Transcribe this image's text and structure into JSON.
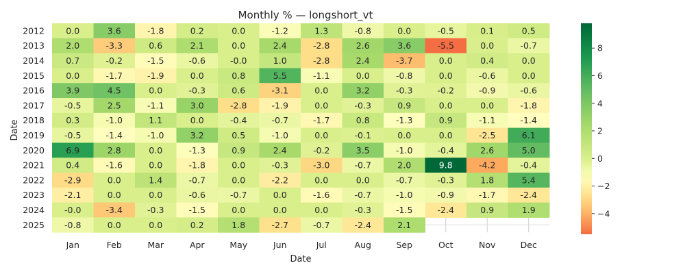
{
  "chart_data": {
    "type": "heatmap",
    "title": "Monthly % — longshort_vt",
    "xlabel": "Date",
    "ylabel": "Date",
    "x_categories": [
      "Jan",
      "Feb",
      "Mar",
      "Apr",
      "May",
      "Jun",
      "Jul",
      "Aug",
      "Sep",
      "Oct",
      "Nov",
      "Dec"
    ],
    "y_categories": [
      "2012",
      "2013",
      "2014",
      "2015",
      "2016",
      "2017",
      "2018",
      "2019",
      "2020",
      "2021",
      "2022",
      "2023",
      "2024",
      "2025"
    ],
    "values": [
      [
        "0.0",
        "3.6",
        "-1.8",
        "0.2",
        "0.0",
        "-1.2",
        "1.3",
        "-0.8",
        "0.0",
        "-0.5",
        "0.1",
        "0.5"
      ],
      [
        "2.0",
        "-3.3",
        "0.6",
        "2.1",
        "0.0",
        "2.4",
        "-2.8",
        "2.6",
        "3.6",
        "-5.5",
        "0.0",
        "-0.7"
      ],
      [
        "0.7",
        "-0.2",
        "-1.5",
        "-0.6",
        "-0.0",
        "1.0",
        "-2.8",
        "2.4",
        "-3.7",
        "0.0",
        "0.4",
        "0.0"
      ],
      [
        "0.0",
        "-1.7",
        "-1.9",
        "0.0",
        "0.8",
        "5.5",
        "-1.1",
        "0.0",
        "-0.8",
        "0.0",
        "-0.6",
        "0.0"
      ],
      [
        "3.9",
        "4.5",
        "0.0",
        "-0.3",
        "0.6",
        "-3.1",
        "0.0",
        "3.2",
        "-0.3",
        "-0.2",
        "-0.9",
        "-0.6"
      ],
      [
        "-0.5",
        "2.5",
        "-1.1",
        "3.0",
        "-2.8",
        "-1.9",
        "0.0",
        "-0.3",
        "0.9",
        "0.0",
        "0.0",
        "-1.8"
      ],
      [
        "0.3",
        "-1.0",
        "1.1",
        "0.0",
        "-0.4",
        "-0.7",
        "-1.7",
        "0.8",
        "-1.3",
        "0.9",
        "-1.1",
        "-1.4"
      ],
      [
        "-0.5",
        "-1.4",
        "-1.0",
        "3.2",
        "0.5",
        "-1.0",
        "0.0",
        "-0.1",
        "0.0",
        "0.0",
        "-2.5",
        "6.1"
      ],
      [
        "6.9",
        "2.8",
        "0.0",
        "-1.3",
        "0.9",
        "2.4",
        "-0.2",
        "3.5",
        "-1.0",
        "-0.4",
        "2.6",
        "5.0"
      ],
      [
        "0.4",
        "-1.6",
        "0.0",
        "-1.8",
        "0.0",
        "-0.3",
        "-3.0",
        "-0.7",
        "2.0",
        "9.8",
        "-4.2",
        "-0.4"
      ],
      [
        "-2.9",
        "0.0",
        "1.4",
        "-0.7",
        "0.0",
        "-2.2",
        "0.0",
        "0.0",
        "-0.7",
        "-0.3",
        "1.8",
        "5.4"
      ],
      [
        "-2.1",
        "0.0",
        "0.0",
        "-0.6",
        "-0.7",
        "0.0",
        "-1.6",
        "-0.7",
        "-1.0",
        "-0.9",
        "-1.7",
        "-2.4"
      ],
      [
        "-0.0",
        "-3.4",
        "-0.3",
        "-1.5",
        "0.0",
        "0.0",
        "0.0",
        "-0.3",
        "-1.5",
        "-2.4",
        "0.9",
        "1.9"
      ],
      [
        "-0.8",
        "0.0",
        "0.0",
        "0.2",
        "1.8",
        "-2.7",
        "-0.7",
        "-2.4",
        "2.1",
        null,
        null,
        null
      ]
    ],
    "colorbar": {
      "range": [
        -5.5,
        9.8
      ],
      "ticks": [
        "8",
        "6",
        "4",
        "2",
        "0",
        "−2",
        "−4"
      ],
      "colormap": "RdYlGn",
      "center": 0
    },
    "grid": false
  }
}
